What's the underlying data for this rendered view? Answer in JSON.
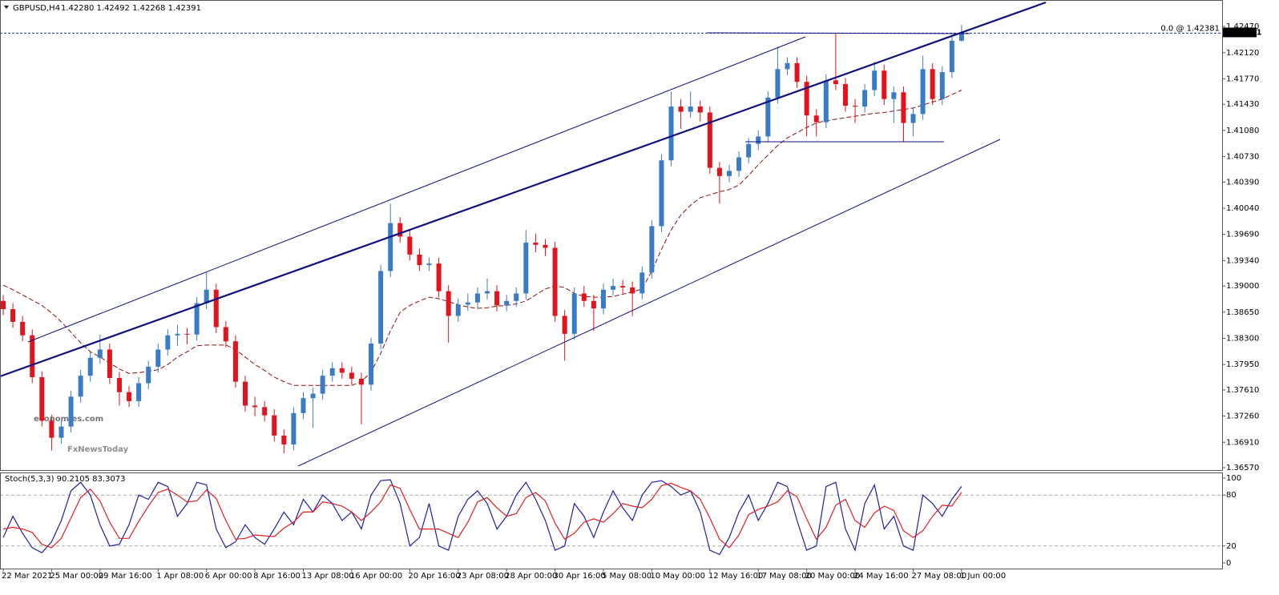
{
  "header": {
    "symbol": "GBPUSD,H4",
    "ohlc": "1.42280 1.42492 1.42268 1.42391"
  },
  "watermark": {
    "brand": "economies.com",
    "partner": "FxNewsToday"
  },
  "chart_data": [
    {
      "type": "candlestick",
      "up_color": "#3a7bc8",
      "down_color": "#e3121c",
      "categories": [
        "22 Mar 2021",
        null,
        null,
        null,
        null,
        "25 Mar 00:00",
        null,
        null,
        null,
        null,
        "29 Mar 16:00",
        null,
        null,
        null,
        null,
        null,
        "1 Apr 08:00",
        null,
        null,
        null,
        null,
        "6 Apr 00:00",
        null,
        null,
        null,
        null,
        "8 Apr 16:00",
        null,
        null,
        null,
        null,
        "13 Apr 08:00",
        null,
        null,
        null,
        null,
        "16 Apr 00:00",
        null,
        null,
        null,
        null,
        null,
        "20 Apr 16:00",
        null,
        null,
        null,
        null,
        "23 Apr 08:00",
        null,
        null,
        null,
        null,
        "28 Apr 00:00",
        null,
        null,
        null,
        null,
        "30 Apr 16:00",
        null,
        null,
        null,
        null,
        "5 May 08:00",
        null,
        null,
        null,
        null,
        "10 May 00:00",
        null,
        null,
        null,
        null,
        null,
        "12 May 16:00",
        null,
        null,
        null,
        null,
        "17 May 08:00",
        null,
        null,
        null,
        null,
        "20 May 00:00",
        null,
        null,
        null,
        null,
        "24 May 16:00",
        null,
        null,
        null,
        null,
        null,
        "27 May 08:00",
        null,
        null,
        null,
        null,
        "1 Jun 00:00"
      ],
      "open": [
        1.388,
        1.3869,
        1.3852,
        1.3834,
        1.3778,
        1.372,
        1.3697,
        1.3712,
        1.3752,
        1.378,
        1.3804,
        1.3815,
        1.3777,
        1.3758,
        1.3746,
        1.377,
        1.3792,
        1.3815,
        1.3834,
        1.3836,
        1.3835,
        1.3877,
        1.3895,
        1.3845,
        1.3826,
        1.3772,
        1.374,
        1.3738,
        1.3727,
        1.37,
        1.3688,
        1.373,
        1.375,
        1.3756,
        1.378,
        1.379,
        1.3784,
        1.3776,
        1.3768,
        1.3823,
        1.392,
        1.3984,
        1.3966,
        1.3942,
        1.3928,
        1.393,
        1.3893,
        1.386,
        1.3875,
        1.3878,
        1.389,
        1.3893,
        1.3874,
        1.388,
        1.389,
        1.3958,
        1.3955,
        1.3951,
        1.386,
        1.3836,
        1.389,
        1.388,
        1.387,
        1.3895,
        1.39,
        1.3898,
        1.389,
        1.3918,
        1.398,
        1.4068,
        1.414,
        1.4133,
        1.414,
        1.4132,
        1.4058,
        1.4047,
        1.4054,
        1.4072,
        1.409,
        1.41,
        1.4152,
        1.419,
        1.4198,
        1.4173,
        1.4128,
        1.4119,
        1.4175,
        1.417,
        1.4141,
        1.414,
        1.4162,
        1.4188,
        1.415,
        1.4159,
        1.4118,
        1.413,
        1.419,
        1.415,
        1.4186,
        1.4228
      ],
      "high": [
        1.3888,
        1.3877,
        1.386,
        1.3842,
        1.3786,
        1.3728,
        1.372,
        1.376,
        1.3788,
        1.3812,
        1.3835,
        1.3823,
        1.3785,
        1.3766,
        1.3778,
        1.38,
        1.3823,
        1.3842,
        1.3848,
        1.3844,
        1.3885,
        1.3918,
        1.3903,
        1.3853,
        1.3834,
        1.378,
        1.3752,
        1.3746,
        1.3735,
        1.3708,
        1.3738,
        1.3758,
        1.3764,
        1.3788,
        1.3798,
        1.3798,
        1.3792,
        1.3784,
        1.3831,
        1.3928,
        1.401,
        1.3992,
        1.3974,
        1.395,
        1.3938,
        1.3938,
        1.3901,
        1.3883,
        1.389,
        1.3898,
        1.391,
        1.3901,
        1.3888,
        1.3898,
        1.3975,
        1.397,
        1.3963,
        1.3959,
        1.3868,
        1.3898,
        1.39,
        1.3888,
        1.3903,
        1.391,
        1.3908,
        1.3906,
        1.3926,
        1.3988,
        1.4076,
        1.416,
        1.415,
        1.416,
        1.4148,
        1.414,
        1.4066,
        1.4062,
        1.408,
        1.4098,
        1.4108,
        1.416,
        1.422,
        1.4206,
        1.4206,
        1.4181,
        1.4136,
        1.4183,
        1.4238,
        1.4178,
        1.415,
        1.417,
        1.42,
        1.4196,
        1.4167,
        1.4167,
        1.4138,
        1.4208,
        1.4198,
        1.4194,
        1.4236,
        1.42492
      ],
      "low": [
        1.3861,
        1.3844,
        1.3826,
        1.377,
        1.3712,
        1.368,
        1.3689,
        1.3704,
        1.3744,
        1.3772,
        1.3796,
        1.3769,
        1.374,
        1.3738,
        1.3738,
        1.3762,
        1.3784,
        1.3807,
        1.382,
        1.3822,
        1.3827,
        1.3869,
        1.3837,
        1.3818,
        1.3764,
        1.3732,
        1.3726,
        1.3719,
        1.3692,
        1.3676,
        1.368,
        1.3722,
        1.371,
        1.3748,
        1.3772,
        1.3776,
        1.3768,
        1.3715,
        1.376,
        1.3815,
        1.3912,
        1.3958,
        1.3934,
        1.392,
        1.392,
        1.3885,
        1.3824,
        1.3852,
        1.3867,
        1.387,
        1.3882,
        1.3866,
        1.3866,
        1.3872,
        1.3882,
        1.3945,
        1.394,
        1.3852,
        1.38,
        1.3828,
        1.3872,
        1.384,
        1.3862,
        1.3887,
        1.389,
        1.386,
        1.3882,
        1.391,
        1.3972,
        1.406,
        1.411,
        1.4125,
        1.412,
        1.405,
        1.401,
        1.4039,
        1.4046,
        1.4064,
        1.4082,
        1.4092,
        1.4144,
        1.4182,
        1.4165,
        1.41,
        1.41,
        1.4111,
        1.4162,
        1.4133,
        1.4118,
        1.4132,
        1.4154,
        1.4142,
        1.4118,
        1.4093,
        1.41,
        1.4122,
        1.4142,
        1.4142,
        1.4178,
        1.42268
      ],
      "close": [
        1.3869,
        1.3852,
        1.3834,
        1.3778,
        1.372,
        1.3697,
        1.3712,
        1.3752,
        1.378,
        1.3804,
        1.3815,
        1.3777,
        1.3758,
        1.3746,
        1.377,
        1.3792,
        1.3815,
        1.3834,
        1.3836,
        1.3835,
        1.3877,
        1.3895,
        1.3845,
        1.3826,
        1.3772,
        1.374,
        1.3738,
        1.3727,
        1.37,
        1.3688,
        1.373,
        1.375,
        1.3756,
        1.378,
        1.379,
        1.3784,
        1.3776,
        1.3768,
        1.3823,
        1.392,
        1.3984,
        1.3966,
        1.3942,
        1.3928,
        1.393,
        1.3893,
        1.386,
        1.3875,
        1.3878,
        1.389,
        1.3893,
        1.3874,
        1.388,
        1.389,
        1.3958,
        1.3955,
        1.3951,
        1.386,
        1.3836,
        1.389,
        1.388,
        1.387,
        1.3895,
        1.39,
        1.3898,
        1.389,
        1.3918,
        1.398,
        1.4068,
        1.414,
        1.4133,
        1.414,
        1.4132,
        1.4058,
        1.4047,
        1.4054,
        1.4072,
        1.409,
        1.41,
        1.4152,
        1.419,
        1.4198,
        1.4173,
        1.4128,
        1.4119,
        1.4175,
        1.417,
        1.4141,
        1.414,
        1.4162,
        1.4188,
        1.415,
        1.4159,
        1.4118,
        1.413,
        1.419,
        1.415,
        1.4186,
        1.4228,
        1.42391
      ],
      "overlays": [
        {
          "color": "#8b1010",
          "values": [
            1.3901,
            1.3895,
            1.3888,
            1.3881,
            1.3874,
            1.3864,
            1.3852,
            1.3838,
            1.3824,
            1.3812,
            1.3805,
            1.3797,
            1.3789,
            1.3783,
            1.3784,
            1.3786,
            1.3788,
            1.3795,
            1.3805,
            1.3812,
            1.382,
            1.3821,
            1.3821,
            1.3821,
            1.3815,
            1.3805,
            1.3795,
            1.3787,
            1.3778,
            1.3772,
            1.3767,
            1.3767,
            1.3767,
            1.3767,
            1.3767,
            1.3767,
            1.3767,
            1.3772,
            1.3785,
            1.381,
            1.384,
            1.3865,
            1.3874,
            1.388,
            1.3885,
            1.3883,
            1.3879,
            1.3875,
            1.3872,
            1.387,
            1.3871,
            1.3873,
            1.3874,
            1.3876,
            1.388,
            1.3888,
            1.3896,
            1.39,
            1.3898,
            1.389,
            1.3886,
            1.3885,
            1.3885,
            1.3886,
            1.3889,
            1.3892,
            1.3896,
            1.392,
            1.3949,
            1.3975,
            1.3995,
            1.4008,
            1.4018,
            1.4022,
            1.4026,
            1.4029,
            1.4035,
            1.4048,
            1.4062,
            1.4075,
            1.4088,
            1.4098,
            1.4105,
            1.4112,
            1.4118,
            1.4121,
            1.4123,
            1.4125,
            1.4127,
            1.4129,
            1.4131,
            1.4132,
            1.4134,
            1.4136,
            1.4138,
            1.4142,
            1.4146,
            1.415,
            1.4156,
            1.4162
          ]
        }
      ],
      "ylim": [
        1.36538,
        1.42803
      ],
      "yticks": [
        {
          "value": 1.4247,
          "label": "1.42470"
        },
        {
          "value": 1.4212,
          "label": "1.42120"
        },
        {
          "value": 1.4177,
          "label": "1.41770"
        },
        {
          "value": 1.4143,
          "label": "1.41430"
        },
        {
          "value": 1.4108,
          "label": "1.41080"
        },
        {
          "value": 1.4073,
          "label": "1.40730"
        },
        {
          "value": 1.4039,
          "label": "1.40390"
        },
        {
          "value": 1.4004,
          "label": "1.40040"
        },
        {
          "value": 1.3969,
          "label": "1.39690"
        },
        {
          "value": 1.3934,
          "label": "1.39340"
        },
        {
          "value": 1.39,
          "label": "1.39000"
        },
        {
          "value": 1.3865,
          "label": "1.38650"
        },
        {
          "value": 1.383,
          "label": "1.38300"
        },
        {
          "value": 1.3795,
          "label": "1.37950"
        },
        {
          "value": 1.3761,
          "label": "1.37610"
        },
        {
          "value": 1.3726,
          "label": "1.37260"
        },
        {
          "value": 1.3691,
          "label": "1.36910"
        },
        {
          "value": 1.3657,
          "label": "1.36570"
        }
      ],
      "fib_level": {
        "value": 1.42381,
        "label": "0.0 @ 1.42381",
        "color": "#1a2a9a"
      },
      "bid": {
        "value": 1.42391,
        "label": "1.42391"
      }
    },
    {
      "type": "line",
      "label": "Stoch(5,3,3) 90.2105 83.3073",
      "series": [
        {
          "color": "#1f1fa8",
          "values": [
            30,
            55,
            35,
            18,
            12,
            25,
            50,
            85,
            95,
            80,
            45,
            20,
            22,
            45,
            80,
            75,
            95,
            90,
            55,
            70,
            95,
            92,
            40,
            18,
            25,
            45,
            30,
            22,
            40,
            60,
            45,
            75,
            60,
            80,
            70,
            50,
            60,
            40,
            80,
            97,
            98,
            70,
            20,
            30,
            70,
            20,
            15,
            55,
            75,
            85,
            70,
            40,
            55,
            80,
            95,
            75,
            50,
            15,
            20,
            70,
            55,
            30,
            60,
            85,
            65,
            50,
            80,
            95,
            97,
            90,
            80,
            85,
            60,
            15,
            10,
            30,
            60,
            80,
            50,
            70,
            95,
            90,
            50,
            15,
            20,
            90,
            95,
            40,
            15,
            70,
            92,
            40,
            55,
            20,
            15,
            80,
            70,
            55,
            75,
            90.2105
          ]
        },
        {
          "color": "#e02020",
          "values": [
            40,
            42,
            40,
            36,
            22,
            18,
            29,
            53,
            77,
            87,
            73,
            48,
            29,
            29,
            49,
            67,
            83,
            87,
            80,
            72,
            73,
            86,
            76,
            50,
            28,
            29,
            33,
            32,
            31,
            41,
            48,
            60,
            60,
            72,
            70,
            67,
            60,
            50,
            60,
            72,
            92,
            88,
            63,
            40,
            40,
            40,
            35,
            30,
            48,
            72,
            77,
            65,
            55,
            58,
            77,
            83,
            73,
            47,
            28,
            35,
            48,
            52,
            48,
            58,
            70,
            67,
            65,
            75,
            91,
            94,
            89,
            85,
            75,
            53,
            28,
            18,
            33,
            57,
            63,
            67,
            72,
            85,
            78,
            52,
            28,
            42,
            68,
            75,
            50,
            42,
            59,
            67,
            62,
            38,
            30,
            38,
            55,
            68,
            67,
            83.3073
          ]
        }
      ],
      "ylim": [
        -6.6,
        106.6
      ],
      "yticks": [
        100,
        80,
        20,
        0
      ],
      "grid_levels": [
        80,
        20
      ]
    }
  ]
}
